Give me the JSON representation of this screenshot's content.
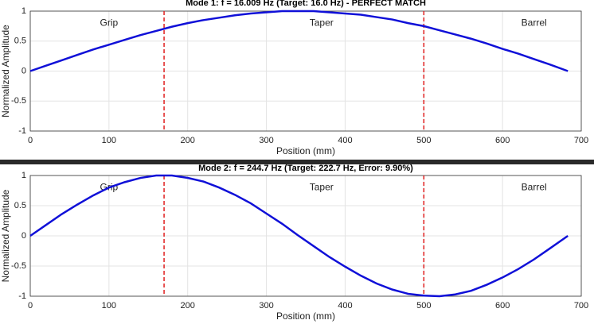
{
  "chart_data": [
    {
      "type": "line",
      "title": "Mode 1: f = 16.009 Hz (Target: 16.0 Hz) - PERFECT MATCH",
      "x_label": "Position (mm)",
      "y_label": "Normalized Amplitude",
      "x": [
        0,
        20,
        40,
        60,
        80,
        100,
        120,
        140,
        160,
        180,
        200,
        220,
        240,
        260,
        280,
        300,
        320,
        340,
        360,
        380,
        400,
        420,
        440,
        460,
        480,
        500,
        520,
        540,
        560,
        580,
        600,
        620,
        640,
        660,
        683
      ],
      "series": [
        {
          "color": "#1010d8",
          "values": [
            0,
            0.09,
            0.18,
            0.27,
            0.36,
            0.44,
            0.52,
            0.6,
            0.67,
            0.74,
            0.8,
            0.85,
            0.89,
            0.93,
            0.96,
            0.98,
            1.0,
            1.0,
            1.0,
            0.98,
            0.96,
            0.94,
            0.9,
            0.86,
            0.8,
            0.75,
            0.68,
            0.61,
            0.54,
            0.46,
            0.37,
            0.29,
            0.2,
            0.11,
            0
          ]
        }
      ],
      "xlim": [
        0,
        700
      ],
      "xticks": [
        0,
        100,
        200,
        300,
        400,
        500,
        600,
        700
      ],
      "ylim": [
        -1,
        1
      ],
      "yticks": [
        -1,
        -0.5,
        0,
        0.5,
        1
      ],
      "grid": true,
      "vlines": [
        170,
        500
      ],
      "vline_color": "#e02020",
      "annotations": [
        {
          "text": "Grip",
          "x": 100,
          "y": 0.8
        },
        {
          "text": "Taper",
          "x": 370,
          "y": 0.8
        },
        {
          "text": "Barrel",
          "x": 640,
          "y": 0.8
        }
      ]
    },
    {
      "type": "line",
      "title": "Mode 2: f = 244.7 Hz (Target: 222.7 Hz, Error: 9.90%)",
      "x_label": "Position (mm)",
      "y_label": "Normalized Amplitude",
      "x": [
        0,
        20,
        40,
        60,
        80,
        100,
        120,
        140,
        160,
        180,
        200,
        220,
        240,
        260,
        280,
        300,
        320,
        340,
        360,
        380,
        400,
        420,
        440,
        460,
        480,
        500,
        520,
        540,
        560,
        580,
        600,
        620,
        640,
        660,
        683
      ],
      "series": [
        {
          "color": "#1010d8",
          "values": [
            0,
            0.18,
            0.36,
            0.52,
            0.67,
            0.8,
            0.89,
            0.96,
            1.0,
            1.0,
            0.96,
            0.9,
            0.8,
            0.68,
            0.54,
            0.37,
            0.2,
            0.01,
            -0.17,
            -0.35,
            -0.51,
            -0.66,
            -0.79,
            -0.89,
            -0.96,
            -0.99,
            -1.0,
            -0.97,
            -0.91,
            -0.81,
            -0.69,
            -0.55,
            -0.39,
            -0.21,
            0
          ]
        }
      ],
      "xlim": [
        0,
        700
      ],
      "xticks": [
        0,
        100,
        200,
        300,
        400,
        500,
        600,
        700
      ],
      "ylim": [
        -1,
        1
      ],
      "yticks": [
        -1,
        -0.5,
        0,
        0.5,
        1
      ],
      "grid": true,
      "vlines": [
        170,
        500
      ],
      "vline_color": "#e02020",
      "annotations": [
        {
          "text": "Grip",
          "x": 100,
          "y": 0.8
        },
        {
          "text": "Taper",
          "x": 370,
          "y": 0.8
        },
        {
          "text": "Barrel",
          "x": 640,
          "y": 0.8
        }
      ]
    }
  ]
}
